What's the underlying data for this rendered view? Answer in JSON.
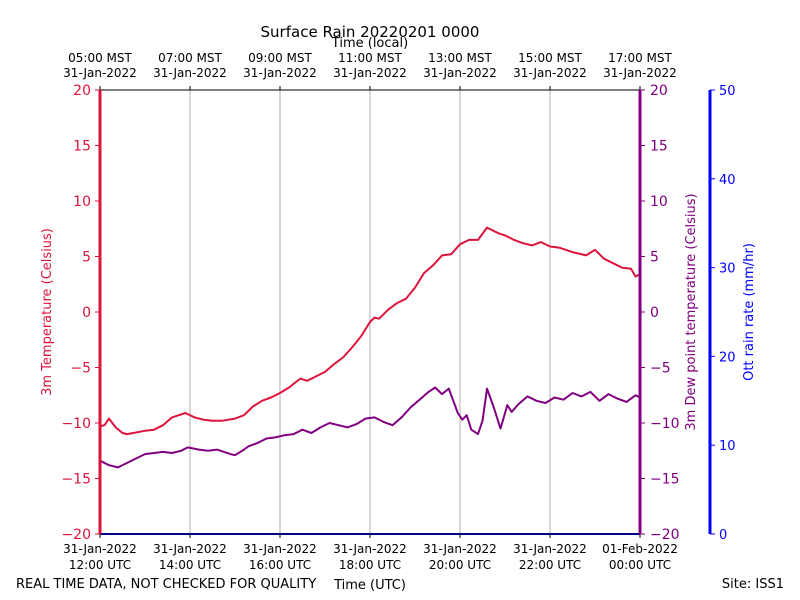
{
  "chart_data": {
    "type": "line",
    "title": "Surface Rain 20220201 0000",
    "top_axis_label": "Time (local)",
    "xlabel": "Time (UTC)",
    "footer_left": "REAL TIME DATA, NOT CHECKED FOR QUALITY",
    "footer_right": "Site: ISS1",
    "x_range_utc_hours": [
      12,
      24
    ],
    "bottom_ticks": [
      {
        "hour": 12,
        "line1": "31-Jan-2022",
        "line2": "12:00 UTC"
      },
      {
        "hour": 14,
        "line1": "31-Jan-2022",
        "line2": "14:00 UTC"
      },
      {
        "hour": 16,
        "line1": "31-Jan-2022",
        "line2": "16:00 UTC"
      },
      {
        "hour": 18,
        "line1": "31-Jan-2022",
        "line2": "18:00 UTC"
      },
      {
        "hour": 20,
        "line1": "31-Jan-2022",
        "line2": "20:00 UTC"
      },
      {
        "hour": 22,
        "line1": "31-Jan-2022",
        "line2": "22:00 UTC"
      },
      {
        "hour": 24,
        "line1": "01-Feb-2022",
        "line2": "00:00 UTC"
      }
    ],
    "top_ticks": [
      {
        "hour": 12,
        "line1": "05:00 MST",
        "line2": "31-Jan-2022"
      },
      {
        "hour": 14,
        "line1": "07:00 MST",
        "line2": "31-Jan-2022"
      },
      {
        "hour": 16,
        "line1": "09:00 MST",
        "line2": "31-Jan-2022"
      },
      {
        "hour": 18,
        "line1": "11:00 MST",
        "line2": "31-Jan-2022"
      },
      {
        "hour": 20,
        "line1": "13:00 MST",
        "line2": "31-Jan-2022"
      },
      {
        "hour": 22,
        "line1": "15:00 MST",
        "line2": "31-Jan-2022"
      },
      {
        "hour": 24,
        "line1": "17:00 MST",
        "line2": "31-Jan-2022"
      }
    ],
    "axes": {
      "temperature": {
        "label": "3m Temperature (Celsius)",
        "ylim": [
          -20,
          20
        ],
        "ticks": [
          -20,
          -15,
          -10,
          -5,
          0,
          5,
          10,
          15,
          20
        ],
        "color": "#dc143c"
      },
      "dewpoint": {
        "label": "3m Dew point temperature (Celsius)",
        "ylim": [
          -20,
          20
        ],
        "ticks": [
          -20,
          -15,
          -10,
          -5,
          0,
          5,
          10,
          15,
          20
        ],
        "color": "#800080"
      },
      "rain": {
        "label": "Ott rain rate (mm/hr)",
        "ylim": [
          0,
          50
        ],
        "ticks": [
          0,
          10,
          20,
          30,
          40,
          50
        ],
        "color": "#0000ff"
      }
    },
    "series": [
      {
        "name": "3m Temperature",
        "axis": "temperature",
        "color": "#dc143c",
        "x": [
          12.0,
          12.1,
          12.2,
          12.35,
          12.5,
          12.6,
          13.0,
          13.2,
          13.4,
          13.6,
          13.75,
          13.9,
          14.1,
          14.3,
          14.5,
          14.7,
          15.0,
          15.2,
          15.4,
          15.6,
          15.8,
          16.0,
          16.2,
          16.45,
          16.6,
          16.8,
          17.0,
          17.2,
          17.4,
          17.6,
          17.8,
          18.0,
          18.1,
          18.2,
          18.4,
          18.6,
          18.8,
          19.0,
          19.2,
          19.4,
          19.6,
          19.8,
          20.0,
          20.2,
          20.4,
          20.6,
          20.85,
          21.0,
          21.2,
          21.4,
          21.6,
          21.8,
          22.0,
          22.2,
          22.5,
          22.8,
          23.0,
          23.2,
          23.4,
          23.6,
          23.8,
          23.9,
          24.0
        ],
        "values": [
          -10.3,
          -10.2,
          -9.6,
          -10.4,
          -10.9,
          -11.0,
          -10.7,
          -10.6,
          -10.2,
          -9.5,
          -9.3,
          -9.1,
          -9.5,
          -9.7,
          -9.8,
          -9.8,
          -9.6,
          -9.3,
          -8.5,
          -8.0,
          -7.7,
          -7.3,
          -6.8,
          -6.0,
          -6.2,
          -5.8,
          -5.4,
          -4.7,
          -4.1,
          -3.2,
          -2.2,
          -0.9,
          -0.5,
          -0.6,
          0.2,
          0.8,
          1.2,
          2.2,
          3.5,
          4.2,
          5.1,
          5.2,
          6.1,
          6.5,
          6.5,
          7.6,
          7.1,
          6.9,
          6.5,
          6.2,
          6.0,
          6.3,
          5.9,
          5.8,
          5.4,
          5.1,
          5.6,
          4.8,
          4.4,
          4.0,
          3.9,
          3.2,
          3.4
        ]
      },
      {
        "name": "3m Dew point temperature",
        "axis": "dewpoint",
        "color": "#800080",
        "x": [
          12.0,
          12.2,
          12.4,
          12.6,
          12.8,
          13.0,
          13.2,
          13.4,
          13.6,
          13.8,
          13.95,
          14.2,
          14.4,
          14.6,
          14.9,
          15.0,
          15.2,
          15.3,
          15.5,
          15.7,
          15.9,
          16.1,
          16.3,
          16.5,
          16.7,
          16.9,
          17.1,
          17.3,
          17.5,
          17.7,
          17.9,
          18.1,
          18.3,
          18.5,
          18.7,
          18.9,
          19.1,
          19.3,
          19.45,
          19.6,
          19.75,
          19.85,
          19.95,
          20.05,
          20.15,
          20.25,
          20.4,
          20.5,
          20.6,
          20.75,
          20.9,
          21.05,
          21.15,
          21.3,
          21.5,
          21.7,
          21.9,
          22.1,
          22.3,
          22.5,
          22.7,
          22.9,
          23.1,
          23.3,
          23.5,
          23.7,
          23.9,
          24.0
        ],
        "values": [
          -13.4,
          -13.8,
          -14.0,
          -13.6,
          -13.2,
          -12.8,
          -12.7,
          -12.6,
          -12.7,
          -12.5,
          -12.2,
          -12.4,
          -12.5,
          -12.4,
          -12.8,
          -12.9,
          -12.4,
          -12.1,
          -11.8,
          -11.4,
          -11.3,
          -11.1,
          -11.0,
          -10.6,
          -10.9,
          -10.4,
          -10.0,
          -10.2,
          -10.4,
          -10.1,
          -9.6,
          -9.5,
          -9.9,
          -10.2,
          -9.5,
          -8.6,
          -7.9,
          -7.2,
          -6.8,
          -7.4,
          -6.9,
          -8.0,
          -9.1,
          -9.7,
          -9.3,
          -10.6,
          -11.0,
          -9.8,
          -6.9,
          -8.6,
          -10.5,
          -8.4,
          -9.0,
          -8.3,
          -7.6,
          -8.0,
          -8.2,
          -7.7,
          -7.9,
          -7.3,
          -7.6,
          -7.2,
          -8.0,
          -7.4,
          -7.8,
          -8.1,
          -7.5,
          -7.7
        ]
      },
      {
        "name": "Ott rain rate",
        "axis": "rain",
        "color": "#0000ff",
        "x": [
          12.0,
          24.0
        ],
        "values": [
          0,
          0
        ]
      }
    ],
    "grid": "x-only",
    "legend": "none"
  },
  "colors": {
    "temperature": "#dc143c",
    "dewpoint": "#800080",
    "rain": "#0000ff",
    "grid": "#b0b0b0"
  }
}
